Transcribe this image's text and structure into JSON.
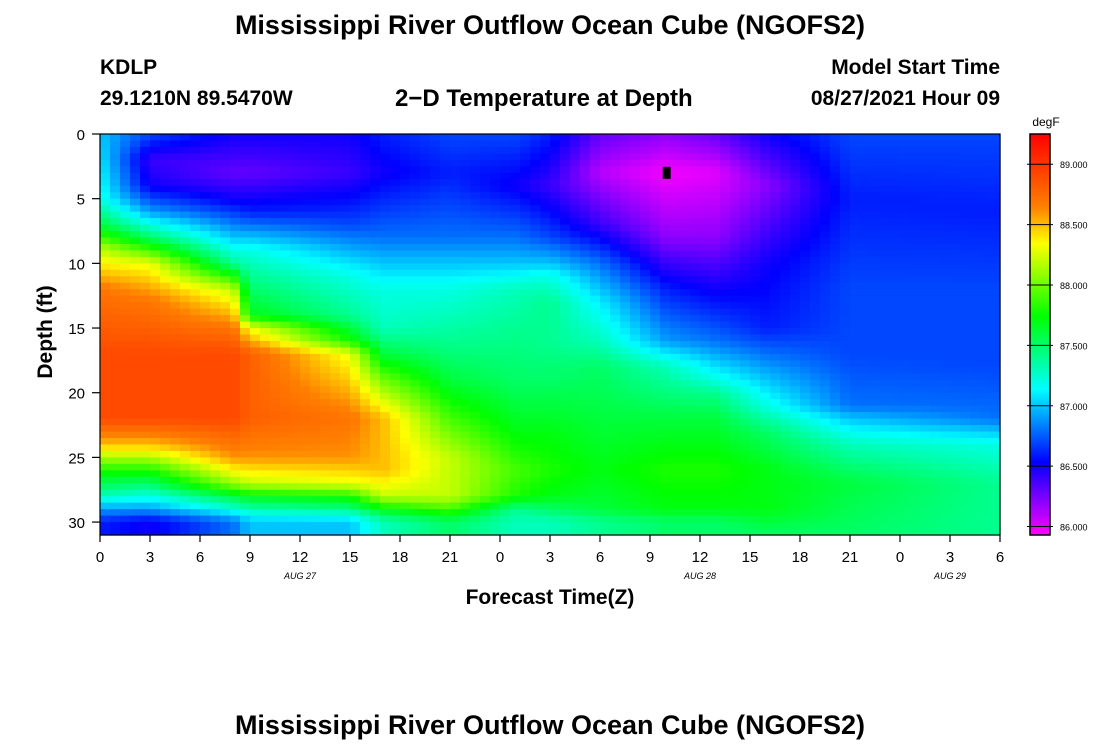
{
  "header": {
    "title": "Mississippi River Outflow Ocean Cube (NGOFS2)",
    "station": "KDLP",
    "coordinates": "29.1210N  89.5470W",
    "subtitle": "2−D Temperature at Depth",
    "model_start_label": "Model Start Time",
    "model_start_value": "08/27/2021 Hour 09"
  },
  "footer": {
    "title": "Mississippi River Outflow Ocean Cube (NGOFS2)"
  },
  "chart_data": {
    "type": "heatmap",
    "xlabel": "Forecast Time(Z)",
    "ylabel": "Depth (ft)",
    "x_range_hours": [
      0,
      54
    ],
    "ylim": [
      0,
      31
    ],
    "y_inverted": true,
    "x_tick_labels": [
      "0",
      "3",
      "6",
      "9",
      "12",
      "15",
      "18",
      "21",
      "0",
      "3",
      "6",
      "9",
      "12",
      "15",
      "18",
      "21",
      "0",
      "3",
      "6"
    ],
    "y_tick_labels": [
      "0",
      "5",
      "10",
      "15",
      "20",
      "25",
      "30"
    ],
    "y_ticks": [
      0,
      5,
      10,
      15,
      20,
      25,
      30
    ],
    "date_labels": [
      {
        "text": "AUG 27",
        "x_hour": 12
      },
      {
        "text": "AUG 28",
        "x_hour": 36
      },
      {
        "text": "AUG 29",
        "x_hour": 51
      }
    ],
    "colorbar": {
      "unit": "degF",
      "min": 85.93,
      "max": 89.25,
      "ticks": [
        86.0,
        86.5,
        87.0,
        87.5,
        88.0,
        88.5,
        89.0
      ],
      "tick_labels": [
        "86.000",
        "86.500",
        "87.000",
        "87.500",
        "88.000",
        "88.500",
        "89.000"
      ],
      "colors": [
        "#ff00ff",
        "#8000ff",
        "#0000ff",
        "#0080ff",
        "#00ffff",
        "#00ff80",
        "#00ff00",
        "#80ff00",
        "#ffff00",
        "#ff8000",
        "#ff4000",
        "#ff0000"
      ]
    },
    "temperature_profiles": [
      {
        "hour": 0,
        "depths": [
          0,
          5,
          7,
          9,
          12,
          17,
          22,
          24,
          26,
          28,
          29,
          30,
          31
        ],
        "values": [
          87.0,
          87.2,
          87.6,
          88.2,
          88.7,
          88.9,
          88.9,
          88.5,
          87.8,
          87.3,
          86.9,
          86.6,
          86.6
        ]
      },
      {
        "hour": 3,
        "depths": [
          0,
          2,
          4,
          6,
          8,
          10,
          13,
          17,
          22,
          24,
          26,
          28,
          29,
          30,
          31
        ],
        "values": [
          86.7,
          86.4,
          86.5,
          86.9,
          87.5,
          88.3,
          88.7,
          88.9,
          88.9,
          88.5,
          87.8,
          87.2,
          86.9,
          86.5,
          86.5
        ]
      },
      {
        "hour": 8,
        "depths": [
          0,
          3,
          5,
          8,
          10,
          12,
          15,
          17,
          22,
          25,
          27,
          28,
          29,
          30,
          31
        ],
        "values": [
          86.5,
          86.3,
          86.5,
          87.0,
          87.4,
          88.2,
          88.7,
          88.9,
          88.9,
          88.6,
          88.1,
          87.6,
          87.2,
          86.8,
          86.8
        ]
      },
      {
        "hour": 9,
        "depths": [
          0,
          3,
          6,
          9,
          11,
          14,
          15,
          17,
          22,
          25,
          27,
          28,
          29,
          30,
          31
        ],
        "values": [
          86.5,
          86.3,
          86.6,
          87.2,
          87.4,
          87.7,
          88.3,
          88.8,
          88.8,
          88.6,
          88.2,
          87.7,
          87.3,
          87.0,
          87.0
        ]
      },
      {
        "hour": 15,
        "depths": [
          0,
          3,
          7,
          11,
          14,
          16,
          17,
          22,
          25,
          27,
          28,
          29,
          30,
          31
        ],
        "values": [
          86.5,
          86.4,
          86.7,
          87.2,
          87.4,
          87.8,
          88.3,
          88.7,
          88.6,
          88.3,
          87.8,
          87.4,
          87.0,
          87.0
        ]
      },
      {
        "hour": 17,
        "depths": [
          0,
          3,
          8,
          12,
          15,
          17,
          19,
          22,
          26,
          28,
          29,
          30,
          31
        ],
        "values": [
          86.6,
          86.5,
          86.8,
          87.2,
          87.3,
          87.6,
          88.0,
          88.5,
          88.5,
          88.2,
          87.7,
          87.3,
          87.3
        ]
      },
      {
        "hour": 21,
        "depths": [
          0,
          3,
          8,
          12,
          16,
          19,
          22,
          25,
          28,
          29,
          30,
          31
        ],
        "values": [
          86.7,
          86.6,
          86.8,
          87.2,
          87.4,
          87.6,
          87.9,
          88.2,
          88.2,
          87.9,
          87.5,
          87.5
        ]
      },
      {
        "hour": 25,
        "depths": [
          0,
          4,
          8,
          10,
          12,
          15,
          19,
          23,
          26,
          28,
          29,
          30,
          31
        ],
        "values": [
          86.7,
          86.5,
          86.8,
          87.0,
          87.3,
          87.4,
          87.5,
          87.7,
          87.9,
          87.8,
          87.4,
          87.3,
          87.3
        ]
      },
      {
        "hour": 27,
        "depths": [
          0,
          4,
          8,
          10,
          11,
          13,
          16,
          19,
          23,
          26,
          28,
          30,
          31
        ],
        "values": [
          86.6,
          86.4,
          86.7,
          87.0,
          87.2,
          87.4,
          87.4,
          87.5,
          87.7,
          87.8,
          87.7,
          87.3,
          87.3
        ]
      },
      {
        "hour": 30,
        "depths": [
          0,
          3,
          7,
          10,
          13,
          16,
          18,
          22,
          26,
          29,
          30,
          31
        ],
        "values": [
          86.3,
          86.1,
          86.4,
          86.8,
          87.1,
          87.3,
          87.5,
          87.6,
          87.7,
          87.6,
          87.4,
          87.4
        ]
      },
      {
        "hour": 34,
        "depths": [
          0,
          3,
          8,
          12,
          16,
          18,
          22,
          26,
          29,
          30,
          31
        ],
        "values": [
          86.2,
          85.95,
          86.2,
          86.6,
          86.9,
          87.3,
          87.6,
          87.8,
          87.7,
          87.5,
          87.5
        ]
      },
      {
        "hour": 37,
        "depths": [
          0,
          3,
          8,
          12,
          16,
          19,
          20,
          22,
          26,
          29,
          30,
          31
        ],
        "values": [
          86.3,
          86.0,
          86.2,
          86.5,
          86.8,
          87.2,
          87.4,
          87.6,
          87.8,
          87.7,
          87.5,
          87.5
        ]
      },
      {
        "hour": 40,
        "depths": [
          0,
          4,
          10,
          15,
          18,
          21,
          23,
          26,
          29,
          31
        ],
        "values": [
          86.5,
          86.2,
          86.5,
          86.6,
          86.9,
          87.2,
          87.5,
          87.7,
          87.7,
          87.5
        ]
      },
      {
        "hour": 45,
        "depths": [
          0,
          5,
          12,
          17,
          21,
          22,
          24,
          27,
          31
        ],
        "values": [
          86.7,
          86.6,
          86.7,
          86.7,
          86.8,
          87.0,
          87.3,
          87.6,
          87.5
        ]
      },
      {
        "hour": 54,
        "depths": [
          0,
          6,
          12,
          18,
          22,
          23,
          24,
          27,
          31
        ],
        "values": [
          86.7,
          86.6,
          86.7,
          86.7,
          86.8,
          87.0,
          87.2,
          87.4,
          87.4
        ]
      }
    ],
    "marker": {
      "hour": 34,
      "depth": 3
    }
  }
}
